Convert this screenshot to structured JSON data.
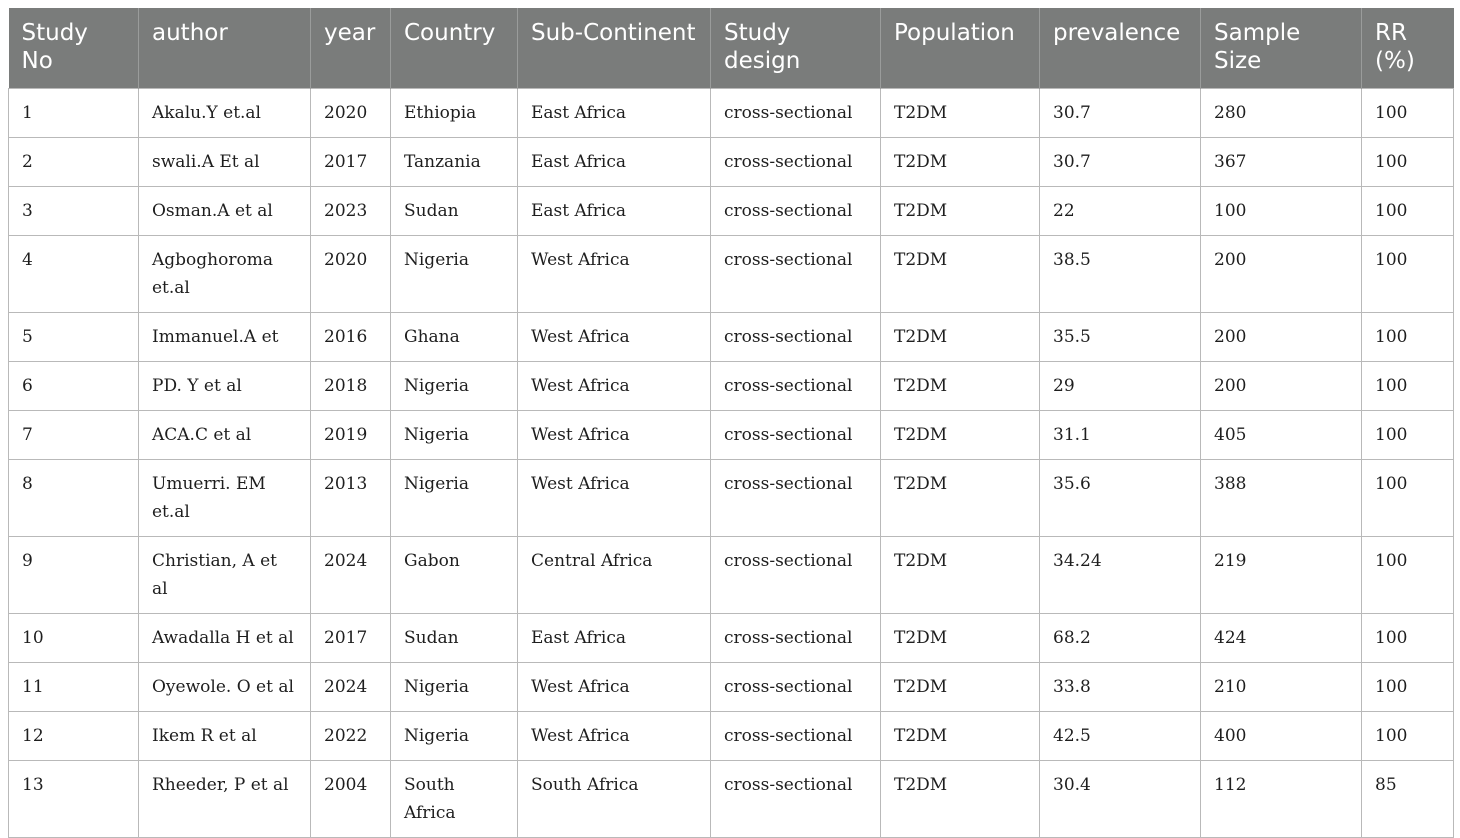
{
  "table": {
    "headers": [
      "Study No",
      "author",
      "year",
      "Country",
      "Sub-Continent",
      "Study design",
      "Population",
      "prevalence",
      "Sample Size",
      "RR (%)"
    ],
    "rows": [
      [
        "1",
        "Akalu.Y et.al",
        "2020",
        "Ethiopia",
        "East Africa",
        "cross-sectional",
        "T2DM",
        "30.7",
        "280",
        "100"
      ],
      [
        "2",
        "swali.A Et al",
        "2017",
        "Tanzania",
        "East Africa",
        "cross-sectional",
        "T2DM",
        "30.7",
        "367",
        "100"
      ],
      [
        "3",
        "Osman.A et al",
        "2023",
        "Sudan",
        "East Africa",
        "cross-sectional",
        "T2DM",
        "22",
        "100",
        "100"
      ],
      [
        "4",
        "Agboghoroma et.al",
        "2020",
        "Nigeria",
        "West Africa",
        "cross-sectional",
        "T2DM",
        "38.5",
        "200",
        "100"
      ],
      [
        "5",
        "Immanuel.A et",
        "2016",
        "Ghana",
        "West Africa",
        "cross-sectional",
        "T2DM",
        "35.5",
        "200",
        "100"
      ],
      [
        "6",
        "PD. Y et al",
        "2018",
        "Nigeria",
        "West Africa",
        "cross-sectional",
        "T2DM",
        "29",
        "200",
        "100"
      ],
      [
        "7",
        "ACA.C et al",
        "2019",
        "Nigeria",
        "West Africa",
        "cross-sectional",
        "T2DM",
        "31.1",
        "405",
        "100"
      ],
      [
        "8",
        "Umuerri. EM et.al",
        "2013",
        "Nigeria",
        "West Africa",
        "cross-sectional",
        "T2DM",
        "35.6",
        "388",
        "100"
      ],
      [
        "9",
        "Christian, A et al",
        "2024",
        "Gabon",
        "Central Africa",
        "cross-sectional",
        "T2DM",
        "34.24",
        "219",
        "100"
      ],
      [
        "10",
        "Awadalla H et al",
        "2017",
        "Sudan",
        "East Africa",
        "cross-sectional",
        "T2DM",
        "68.2",
        "424",
        "100"
      ],
      [
        "11",
        "Oyewole. O et al",
        "2024",
        "Nigeria",
        "West Africa",
        "cross-sectional",
        "T2DM",
        "33.8",
        "210",
        "100"
      ],
      [
        "12",
        "Ikem R et al",
        "2022",
        "Nigeria",
        "West Africa",
        "cross-sectional",
        "T2DM",
        "42.5",
        "400",
        "100"
      ],
      [
        "13",
        "Rheeder, P et al",
        "2004",
        "South Africa",
        "South Africa",
        "cross-sectional",
        "T2DM",
        "30.4",
        "112",
        "85"
      ]
    ]
  }
}
